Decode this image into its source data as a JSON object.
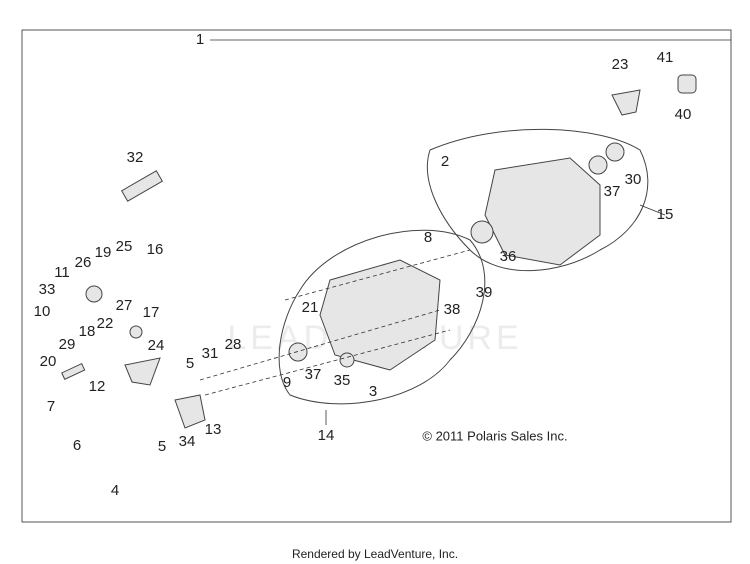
{
  "callouts": [
    {
      "label": "1"
    },
    {
      "label": "23"
    },
    {
      "label": "41"
    },
    {
      "label": "40"
    },
    {
      "label": "32"
    },
    {
      "label": "2"
    },
    {
      "label": "37"
    },
    {
      "label": "30"
    },
    {
      "label": "15"
    },
    {
      "label": "36"
    },
    {
      "label": "8"
    },
    {
      "label": "19"
    },
    {
      "label": "25"
    },
    {
      "label": "16"
    },
    {
      "label": "26"
    },
    {
      "label": "11"
    },
    {
      "label": "33"
    },
    {
      "label": "10"
    },
    {
      "label": "27"
    },
    {
      "label": "22"
    },
    {
      "label": "17"
    },
    {
      "label": "18"
    },
    {
      "label": "29"
    },
    {
      "label": "20"
    },
    {
      "label": "24"
    },
    {
      "label": "12"
    },
    {
      "label": "7"
    },
    {
      "label": "6"
    },
    {
      "label": "21"
    },
    {
      "label": "38"
    },
    {
      "label": "39"
    },
    {
      "label": "5"
    },
    {
      "label": "31"
    },
    {
      "label": "28"
    },
    {
      "label": "9"
    },
    {
      "label": "37"
    },
    {
      "label": "35"
    },
    {
      "label": "3"
    },
    {
      "label": "34"
    },
    {
      "label": "13"
    },
    {
      "label": "5"
    },
    {
      "label": "14"
    },
    {
      "label": "4"
    }
  ],
  "watermark": "LEADVENTURE",
  "copyright": "© 2011 Polaris Sales Inc.",
  "footer": "Rendered by LeadVenture, Inc."
}
